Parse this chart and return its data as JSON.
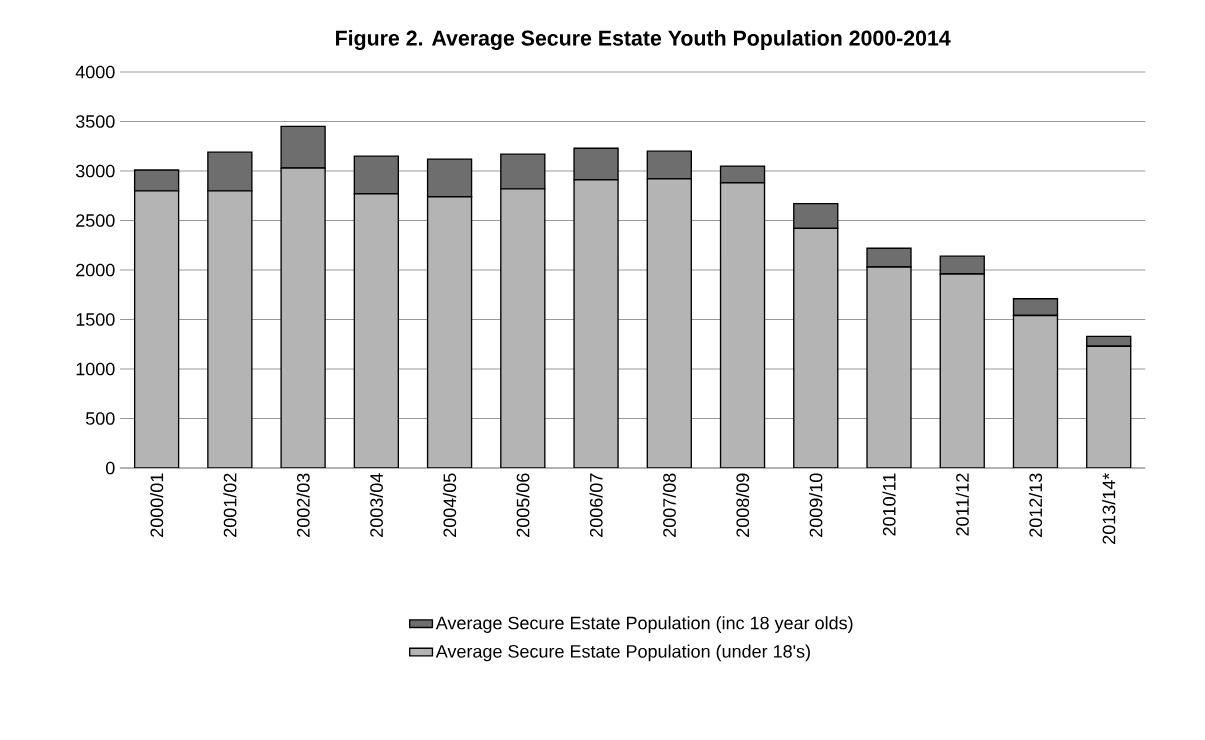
{
  "chart_data": {
    "type": "bar",
    "title": "Figure 2. Average Secure Estate Youth Population  2000-2014",
    "categories": [
      "2000/01",
      "2001/02",
      "2002/03",
      "2003/04",
      "2004/05",
      "2005/06",
      "2006/07",
      "2007/08",
      "2008/09",
      "2009/10",
      "2010/11",
      "2011/12",
      "2012/13",
      "2013/14*"
    ],
    "stacked": true,
    "series": [
      {
        "name": "Average Secure Estate Population (under 18's)",
        "color": "#b4b4b4",
        "values": [
          2800,
          2800,
          3030,
          2770,
          2740,
          2820,
          2910,
          2920,
          2880,
          2420,
          2030,
          1960,
          1540,
          1230
        ]
      },
      {
        "name": "Average Secure Estate Population (inc 18 year olds)",
        "color": "#6e6e6e",
        "values": [
          210,
          390,
          420,
          380,
          380,
          350,
          320,
          280,
          170,
          250,
          190,
          180,
          170,
          100
        ]
      }
    ],
    "ylim": [
      0,
      4000
    ],
    "yticks": [
      0,
      500,
      1000,
      1500,
      2000,
      2500,
      3000,
      3500,
      4000
    ],
    "grid": "y",
    "legend": "bottom"
  }
}
